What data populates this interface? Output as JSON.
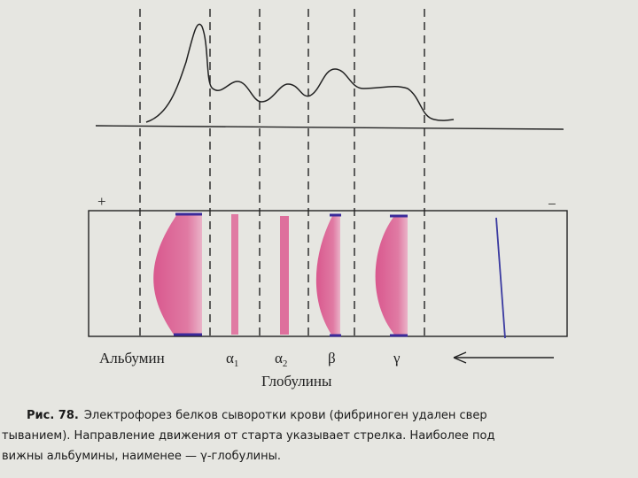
{
  "figure": {
    "plus": "+",
    "minus": "−",
    "labels": {
      "albumin": "Альбумин",
      "alpha1": {
        "symbol": "α",
        "subscript": "1"
      },
      "alpha2": {
        "symbol": "α",
        "subscript": "2"
      },
      "beta": "β",
      "gamma": "γ",
      "globulins": "Глобулины"
    },
    "caption": {
      "number": "Рис. 78.",
      "lines": [
        "Электрофорез белков сыворотки крови (фибриноген удален свер",
        "тыванием). Направление движения от старта указывает стрелка. Наиболее под",
        "вижны альбумины, наименее — γ-глобулины."
      ]
    }
  }
}
